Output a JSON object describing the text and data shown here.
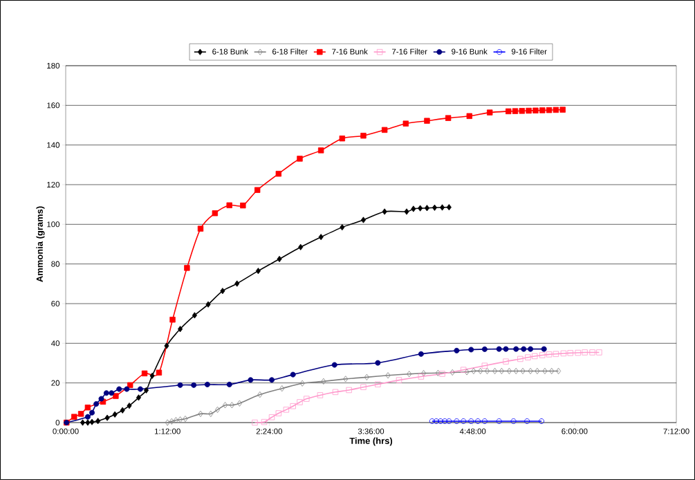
{
  "chart_data": {
    "type": "line",
    "xlabel": "Time (hrs)",
    "ylabel": "Ammonia (grams)",
    "xlim": [
      0,
      7.2
    ],
    "ylim": [
      0,
      180
    ],
    "xticks": [
      {
        "value": 0,
        "label": "0:00:00"
      },
      {
        "value": 1.2,
        "label": "1:12:00"
      },
      {
        "value": 2.4,
        "label": "2:24:00"
      },
      {
        "value": 3.6,
        "label": "3:36:00"
      },
      {
        "value": 4.8,
        "label": "4:48:00"
      },
      {
        "value": 6.0,
        "label": "6:00:00"
      },
      {
        "value": 7.2,
        "label": "7:12:00"
      }
    ],
    "yticks": [
      0,
      20,
      40,
      60,
      80,
      100,
      120,
      140,
      160,
      180
    ],
    "grid": "y",
    "legend": "top",
    "series": [
      {
        "name": "6-18 Bunk",
        "color": "#000000",
        "marker": "diamond",
        "x": [
          0.2,
          0.26,
          0.31,
          0.38,
          0.49,
          0.58,
          0.67,
          0.75,
          0.86,
          0.95,
          1.02,
          1.19,
          1.35,
          1.52,
          1.68,
          1.85,
          2.02,
          2.27,
          2.52,
          2.77,
          3.01,
          3.26,
          3.51,
          3.76,
          4.02,
          4.1,
          4.18,
          4.26,
          4.35,
          4.44,
          4.52
        ],
        "values": [
          0,
          0,
          0.3,
          0.8,
          2.4,
          4.1,
          6.2,
          8.5,
          12.6,
          16.3,
          23.6,
          38.7,
          47.2,
          54.1,
          59.6,
          66.4,
          70.1,
          76.5,
          82.5,
          88.5,
          93.6,
          98.5,
          102.2,
          106.4,
          106.4,
          107.8,
          108.1,
          108.2,
          108.4,
          108.5,
          108.6
        ]
      },
      {
        "name": "6-18 Filter",
        "color": "#808080",
        "marker": "diamond",
        "x": [
          1.2,
          1.25,
          1.3,
          1.35,
          1.41,
          1.59,
          1.71,
          1.79,
          1.88,
          1.96,
          2.05,
          2.29,
          2.55,
          2.79,
          3.04,
          3.3,
          3.55,
          3.8,
          4.05,
          4.22,
          4.39,
          4.56,
          4.73,
          4.81,
          4.89,
          4.97,
          5.06,
          5.14,
          5.23,
          5.31,
          5.39,
          5.48,
          5.56,
          5.65,
          5.73,
          5.81
        ],
        "values": [
          0,
          0.6,
          1.2,
          1.5,
          1.9,
          4.4,
          4.4,
          6.5,
          8.8,
          8.8,
          9.7,
          14.1,
          17.2,
          19.8,
          20.8,
          22.0,
          22.9,
          23.8,
          24.5,
          24.9,
          25.0,
          25.3,
          25.5,
          26,
          26,
          26,
          26,
          26,
          26,
          26,
          26,
          26,
          26,
          26,
          26,
          26
        ]
      },
      {
        "name": "7-16 Bunk",
        "color": "#ff0000",
        "marker": "square",
        "x": [
          0.01,
          0.1,
          0.18,
          0.26,
          0.44,
          0.59,
          0.76,
          0.93,
          1.1,
          1.26,
          1.43,
          1.59,
          1.76,
          1.93,
          2.09,
          2.26,
          2.51,
          2.76,
          3.01,
          3.26,
          3.51,
          3.76,
          4.01,
          4.26,
          4.51,
          4.76,
          5.0,
          5.22,
          5.3,
          5.38,
          5.46,
          5.54,
          5.62,
          5.7,
          5.78,
          5.86
        ],
        "values": [
          0,
          2.9,
          4.4,
          7.6,
          10.5,
          13.4,
          18.9,
          24.8,
          25.2,
          51.9,
          78.0,
          97.8,
          105.6,
          109.6,
          109.5,
          117.3,
          125.5,
          133.1,
          137.3,
          143.3,
          144.7,
          147.6,
          150.8,
          152.2,
          153.6,
          154.6,
          156.4,
          157.0,
          157.1,
          157.2,
          157.3,
          157.4,
          157.5,
          157.6,
          157.7,
          157.8
        ]
      },
      {
        "name": "7-16 Filter",
        "color": "#ff99cc",
        "marker": "square",
        "x": [
          2.23,
          2.34,
          2.43,
          2.51,
          2.6,
          2.68,
          2.76,
          2.84,
          3.0,
          3.18,
          3.34,
          3.51,
          3.68,
          3.93,
          4.19,
          4.44,
          4.69,
          4.94,
          5.19,
          5.36,
          5.45,
          5.53,
          5.62,
          5.7,
          5.78,
          5.87,
          5.95,
          6.04,
          6.12,
          6.21,
          6.29
        ],
        "values": [
          0,
          0.3,
          2.7,
          4.7,
          6.5,
          8.3,
          10.3,
          12.0,
          13.8,
          15.4,
          16.4,
          17.9,
          19.3,
          21.4,
          23.2,
          24.6,
          26.6,
          28.7,
          30.8,
          32.1,
          32.9,
          33.5,
          34.0,
          34.4,
          34.6,
          34.9,
          35.1,
          35.2,
          35.4,
          35.4,
          35.4
        ]
      },
      {
        "name": "9-16 Bunk",
        "color": "#000080",
        "marker": "circle",
        "x": [
          0.01,
          0.26,
          0.31,
          0.36,
          0.42,
          0.48,
          0.54,
          0.63,
          0.72,
          0.88,
          1.35,
          1.51,
          1.67,
          1.93,
          2.18,
          2.43,
          2.68,
          3.17,
          3.68,
          4.19,
          4.61,
          4.78,
          4.94,
          5.11,
          5.19,
          5.31,
          5.4,
          5.48,
          5.64
        ],
        "values": [
          0,
          2.9,
          5.0,
          9.4,
          12.0,
          14.9,
          14.9,
          16.9,
          16.9,
          16.9,
          18.9,
          18.9,
          19.2,
          19.2,
          21.5,
          21.5,
          24.2,
          29.1,
          30.1,
          34.6,
          36.3,
          36.8,
          37.0,
          37.1,
          37.1,
          37.1,
          37.1,
          37.1,
          37.1
        ]
      },
      {
        "name": "9-16 Filter",
        "color": "#0000ff",
        "marker": "circle",
        "x": [
          4.32,
          4.37,
          4.42,
          4.47,
          4.52,
          4.61,
          4.69,
          4.78,
          4.86,
          4.94,
          5.11,
          5.28,
          5.44,
          5.61
        ],
        "values": [
          0.7,
          0.7,
          0.7,
          0.7,
          0.7,
          0.7,
          0.7,
          0.7,
          0.7,
          0.7,
          0.7,
          0.7,
          0.7,
          0.7
        ]
      }
    ]
  }
}
